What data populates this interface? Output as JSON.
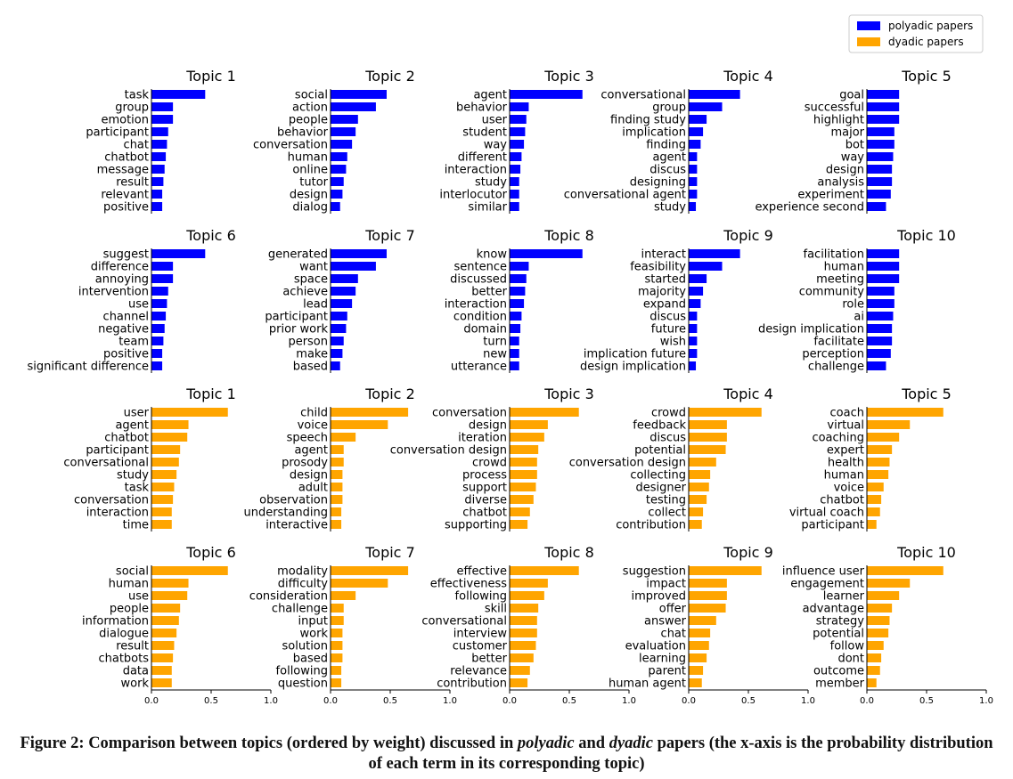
{
  "legend": {
    "placement": "top-right",
    "entries": [
      {
        "label": "polyadic papers",
        "color": "#0000ff"
      },
      {
        "label": "dyadic papers",
        "color": "#ffa500"
      }
    ]
  },
  "caption": {
    "prefix": "Figure 2: Comparison between topics (ordered by weight) discussed in ",
    "em1": "polyadic",
    "mid": " and ",
    "em2": "dyadic",
    "suffix": " papers (the x-axis is the probability distribution of each term in its corresponding topic)"
  },
  "chart_data": [
    {
      "type": "bar",
      "orientation": "horizontal",
      "group": "polyadic papers",
      "color": "#0000ff",
      "title": "Topic 1",
      "xlim": [
        0,
        1.0
      ],
      "categories": [
        "task",
        "group",
        "emotion",
        "participant",
        "chat",
        "chatbot",
        "message",
        "result",
        "relevant",
        "positive"
      ],
      "values": [
        0.45,
        0.18,
        0.18,
        0.14,
        0.13,
        0.12,
        0.11,
        0.1,
        0.09,
        0.09
      ]
    },
    {
      "type": "bar",
      "orientation": "horizontal",
      "group": "polyadic papers",
      "color": "#0000ff",
      "title": "Topic 2",
      "xlim": [
        0,
        1.0
      ],
      "categories": [
        "social",
        "action",
        "people",
        "behavior",
        "conversation",
        "human",
        "online",
        "tutor",
        "design",
        "dialog"
      ],
      "values": [
        0.47,
        0.38,
        0.23,
        0.21,
        0.18,
        0.14,
        0.13,
        0.11,
        0.1,
        0.08
      ]
    },
    {
      "type": "bar",
      "orientation": "horizontal",
      "group": "polyadic papers",
      "color": "#0000ff",
      "title": "Topic 3",
      "xlim": [
        0,
        1.0
      ],
      "categories": [
        "agent",
        "behavior",
        "user",
        "student",
        "way",
        "different",
        "interaction",
        "study",
        "interlocutor",
        "similar"
      ],
      "values": [
        0.61,
        0.16,
        0.14,
        0.13,
        0.12,
        0.1,
        0.09,
        0.08,
        0.08,
        0.08
      ]
    },
    {
      "type": "bar",
      "orientation": "horizontal",
      "group": "polyadic papers",
      "color": "#0000ff",
      "title": "Topic 4",
      "xlim": [
        0,
        1.0
      ],
      "categories": [
        "conversational",
        "group",
        "finding study",
        "implication",
        "finding",
        "agent",
        "discus",
        "designing",
        "conversational agent",
        "study"
      ],
      "values": [
        0.43,
        0.28,
        0.15,
        0.12,
        0.1,
        0.07,
        0.07,
        0.07,
        0.07,
        0.06
      ]
    },
    {
      "type": "bar",
      "orientation": "horizontal",
      "group": "polyadic papers",
      "color": "#0000ff",
      "title": "Topic 5",
      "xlim": [
        0,
        1.0
      ],
      "categories": [
        "goal",
        "successful",
        "highlight",
        "major",
        "bot",
        "way",
        "design",
        "analysis",
        "experiment",
        "experience second"
      ],
      "values": [
        0.27,
        0.27,
        0.27,
        0.23,
        0.23,
        0.22,
        0.21,
        0.21,
        0.2,
        0.16
      ]
    },
    {
      "type": "bar",
      "orientation": "horizontal",
      "group": "polyadic papers",
      "color": "#0000ff",
      "title": "Topic 6",
      "xlim": [
        0,
        1.0
      ],
      "categories": [
        "suggest",
        "difference",
        "annoying",
        "intervention",
        "use",
        "channel",
        "negative",
        "team",
        "positive",
        "significant difference"
      ],
      "values": [
        0.45,
        0.18,
        0.18,
        0.14,
        0.13,
        0.12,
        0.11,
        0.1,
        0.09,
        0.09
      ]
    },
    {
      "type": "bar",
      "orientation": "horizontal",
      "group": "polyadic papers",
      "color": "#0000ff",
      "title": "Topic 7",
      "xlim": [
        0,
        1.0
      ],
      "categories": [
        "generated",
        "want",
        "space",
        "achieve",
        "lead",
        "participant",
        "prior work",
        "person",
        "make",
        "based"
      ],
      "values": [
        0.47,
        0.38,
        0.23,
        0.21,
        0.18,
        0.14,
        0.13,
        0.11,
        0.1,
        0.08
      ]
    },
    {
      "type": "bar",
      "orientation": "horizontal",
      "group": "polyadic papers",
      "color": "#0000ff",
      "title": "Topic 8",
      "xlim": [
        0,
        1.0
      ],
      "categories": [
        "know",
        "sentence",
        "discussed",
        "better",
        "interaction",
        "condition",
        "domain",
        "turn",
        "new",
        "utterance"
      ],
      "values": [
        0.61,
        0.16,
        0.14,
        0.13,
        0.12,
        0.1,
        0.09,
        0.08,
        0.08,
        0.08
      ]
    },
    {
      "type": "bar",
      "orientation": "horizontal",
      "group": "polyadic papers",
      "color": "#0000ff",
      "title": "Topic 9",
      "xlim": [
        0,
        1.0
      ],
      "categories": [
        "interact",
        "feasibility",
        "started",
        "majority",
        "expand",
        "discus",
        "future",
        "wish",
        "implication future",
        "design implication"
      ],
      "values": [
        0.43,
        0.28,
        0.15,
        0.12,
        0.1,
        0.07,
        0.07,
        0.07,
        0.07,
        0.06
      ]
    },
    {
      "type": "bar",
      "orientation": "horizontal",
      "group": "polyadic papers",
      "color": "#0000ff",
      "title": "Topic 10",
      "xlim": [
        0,
        1.0
      ],
      "categories": [
        "facilitation",
        "human",
        "meeting",
        "community",
        "role",
        "ai",
        "design implication",
        "facilitate",
        "perception",
        "challenge"
      ],
      "values": [
        0.27,
        0.27,
        0.27,
        0.23,
        0.23,
        0.22,
        0.21,
        0.21,
        0.2,
        0.16
      ]
    },
    {
      "type": "bar",
      "orientation": "horizontal",
      "group": "dyadic papers",
      "color": "#ffa500",
      "title": "Topic 1",
      "xlim": [
        0,
        1.0
      ],
      "categories": [
        "user",
        "agent",
        "chatbot",
        "participant",
        "conversational",
        "study",
        "task",
        "conversation",
        "interaction",
        "time"
      ],
      "values": [
        0.64,
        0.31,
        0.3,
        0.24,
        0.23,
        0.21,
        0.19,
        0.18,
        0.17,
        0.17
      ]
    },
    {
      "type": "bar",
      "orientation": "horizontal",
      "group": "dyadic papers",
      "color": "#ffa500",
      "title": "Topic 2",
      "xlim": [
        0,
        1.0
      ],
      "categories": [
        "child",
        "voice",
        "speech",
        "agent",
        "prosody",
        "design",
        "adult",
        "observation",
        "understanding",
        "interactive"
      ],
      "values": [
        0.65,
        0.48,
        0.21,
        0.11,
        0.11,
        0.1,
        0.1,
        0.1,
        0.09,
        0.09
      ]
    },
    {
      "type": "bar",
      "orientation": "horizontal",
      "group": "dyadic papers",
      "color": "#ffa500",
      "title": "Topic 3",
      "xlim": [
        0,
        1.0
      ],
      "categories": [
        "conversation",
        "design",
        "iteration",
        "conversation design",
        "crowd",
        "process",
        "support",
        "diverse",
        "chatbot",
        "supporting"
      ],
      "values": [
        0.58,
        0.32,
        0.29,
        0.24,
        0.23,
        0.23,
        0.22,
        0.2,
        0.17,
        0.15
      ]
    },
    {
      "type": "bar",
      "orientation": "horizontal",
      "group": "dyadic papers",
      "color": "#ffa500",
      "title": "Topic 4",
      "xlim": [
        0,
        1.0
      ],
      "categories": [
        "crowd",
        "feedback",
        "discus",
        "potential",
        "conversation design",
        "collecting",
        "designer",
        "testing",
        "collect",
        "contribution"
      ],
      "values": [
        0.61,
        0.32,
        0.32,
        0.31,
        0.23,
        0.18,
        0.17,
        0.15,
        0.12,
        0.11
      ]
    },
    {
      "type": "bar",
      "orientation": "horizontal",
      "group": "dyadic papers",
      "color": "#ffa500",
      "title": "Topic 5",
      "xlim": [
        0,
        1.0
      ],
      "categories": [
        "coach",
        "virtual",
        "coaching",
        "expert",
        "health",
        "human",
        "voice",
        "chatbot",
        "virtual coach",
        "participant"
      ],
      "values": [
        0.64,
        0.36,
        0.27,
        0.21,
        0.19,
        0.18,
        0.14,
        0.12,
        0.11,
        0.08
      ]
    },
    {
      "type": "bar",
      "orientation": "horizontal",
      "group": "dyadic papers",
      "color": "#ffa500",
      "title": "Topic 6",
      "xlim": [
        0,
        1.0
      ],
      "categories": [
        "social",
        "human",
        "use",
        "people",
        "information",
        "dialogue",
        "result",
        "chatbots",
        "data",
        "work"
      ],
      "values": [
        0.64,
        0.31,
        0.3,
        0.24,
        0.23,
        0.21,
        0.19,
        0.18,
        0.17,
        0.17
      ]
    },
    {
      "type": "bar",
      "orientation": "horizontal",
      "group": "dyadic papers",
      "color": "#ffa500",
      "title": "Topic 7",
      "xlim": [
        0,
        1.0
      ],
      "categories": [
        "modality",
        "difficulty",
        "consideration",
        "challenge",
        "input",
        "work",
        "solution",
        "based",
        "following",
        "question"
      ],
      "values": [
        0.65,
        0.48,
        0.21,
        0.11,
        0.11,
        0.1,
        0.1,
        0.1,
        0.09,
        0.09
      ]
    },
    {
      "type": "bar",
      "orientation": "horizontal",
      "group": "dyadic papers",
      "color": "#ffa500",
      "title": "Topic 8",
      "xlim": [
        0,
        1.0
      ],
      "categories": [
        "effective",
        "effectiveness",
        "following",
        "skill",
        "conversational",
        "interview",
        "customer",
        "better",
        "relevance",
        "contribution"
      ],
      "values": [
        0.58,
        0.32,
        0.29,
        0.24,
        0.23,
        0.23,
        0.22,
        0.2,
        0.17,
        0.15
      ]
    },
    {
      "type": "bar",
      "orientation": "horizontal",
      "group": "dyadic papers",
      "color": "#ffa500",
      "title": "Topic 9",
      "xlim": [
        0,
        1.0
      ],
      "categories": [
        "suggestion",
        "impact",
        "improved",
        "offer",
        "answer",
        "chat",
        "evaluation",
        "learning",
        "parent",
        "human agent"
      ],
      "values": [
        0.61,
        0.32,
        0.32,
        0.31,
        0.23,
        0.18,
        0.17,
        0.15,
        0.12,
        0.11
      ]
    },
    {
      "type": "bar",
      "orientation": "horizontal",
      "group": "dyadic papers",
      "color": "#ffa500",
      "title": "Topic 10",
      "xlim": [
        0,
        1.0
      ],
      "categories": [
        "influence user",
        "engagement",
        "learner",
        "advantage",
        "strategy",
        "potential",
        "follow",
        "dont",
        "outcome",
        "member"
      ],
      "values": [
        0.64,
        0.36,
        0.27,
        0.21,
        0.19,
        0.18,
        0.14,
        0.12,
        0.11,
        0.08
      ]
    }
  ],
  "x_ticks": [
    "0.0",
    "0.5",
    "1.0"
  ]
}
